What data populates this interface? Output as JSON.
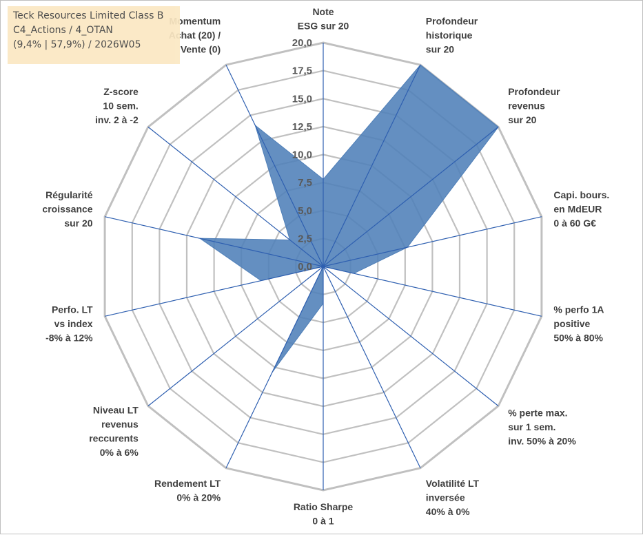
{
  "title_box": {
    "line1": "Teck Resources Limited Class B",
    "line2": "C4_Actions / 4_OTAN",
    "line3": "(9,4% | 57,9%) / 2026W05"
  },
  "colors": {
    "fill": "#4f7fb8",
    "axis_line": "#2e5fb0",
    "grid": "#c0c0c0",
    "title_bg": "#fbe8c3"
  },
  "chart_data": {
    "type": "radar",
    "rmin": 0,
    "rmax": 20,
    "tick_labels": [
      "0,0",
      "2,5",
      "5,0",
      "7,5",
      "10,0",
      "12,5",
      "15,0",
      "17,5",
      "20,0"
    ],
    "axes": [
      {
        "label": [
          "Note",
          "ESG sur 20"
        ],
        "value": 7.8
      },
      {
        "label": [
          "Profondeur",
          "historique",
          "sur 20"
        ],
        "value": 20
      },
      {
        "label": [
          "Profondeur",
          "revenus",
          "sur 20"
        ],
        "value": 20
      },
      {
        "label": [
          "Capi. bours.",
          "en MdEUR",
          "0 à 60 G€"
        ],
        "value": 7.7
      },
      {
        "label": [
          "% perfo 1A",
          "positive",
          "50% à 80%"
        ],
        "value": 2.8
      },
      {
        "label": [
          "% perte max.",
          "sur 1 sem.",
          "inv. 50% à 20%"
        ],
        "value": 0
      },
      {
        "label": [
          "Volatilité LT",
          "inversée",
          "40% à 0%"
        ],
        "value": 0
      },
      {
        "label": [
          "Ratio Sharpe",
          "0 à 1"
        ],
        "value": 3.3
      },
      {
        "label": [
          "Rendement LT",
          "0% à 20%"
        ],
        "value": 10.5
      },
      {
        "label": [
          "Niveau LT",
          "revenus",
          "reccurents",
          "0% à 6%"
        ],
        "value": 0
      },
      {
        "label": [
          "Perfo. LT",
          "vs index",
          "-8% à 12%"
        ],
        "value": 5.7
      },
      {
        "label": [
          "Régularité",
          "croissance",
          "sur 20"
        ],
        "value": 11.3
      },
      {
        "label": [
          "Z-score",
          "10 sem.",
          "inv. 2 à -2"
        ],
        "value": 3.8
      },
      {
        "label": [
          "Momentum",
          "Achat (20) /",
          "Vente (0)"
        ],
        "value": 14.0
      }
    ]
  }
}
